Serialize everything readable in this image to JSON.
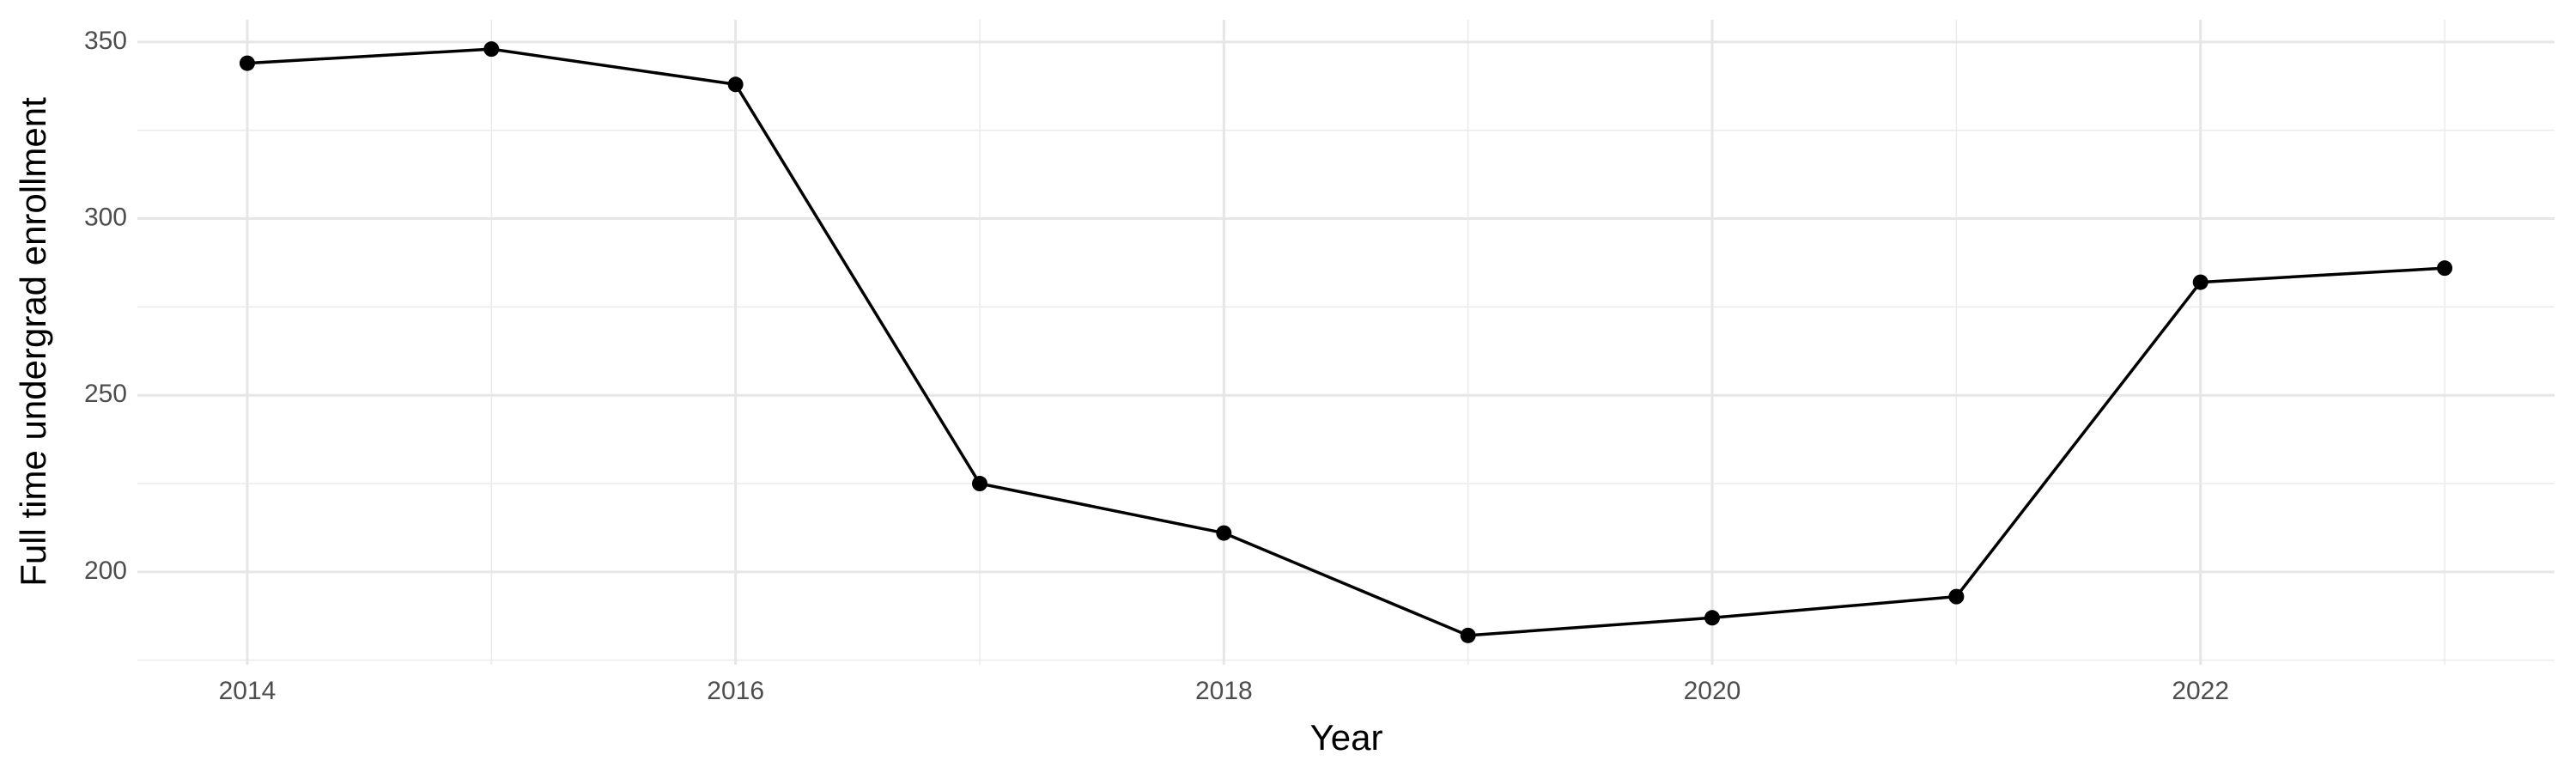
{
  "chart_data": {
    "type": "line",
    "x_label": "Year",
    "y_label": "Full time undergrad enrollment",
    "x": [
      2014,
      2015,
      2016,
      2017,
      2018,
      2019,
      2020,
      2021,
      2022,
      2023
    ],
    "series": [
      {
        "color": "#000000",
        "values": [
          344,
          348,
          338,
          225,
          211,
          182,
          187,
          193,
          282,
          286
        ]
      }
    ],
    "xlim": [
      2013.55,
      2023.45
    ],
    "xticks": [
      2014,
      2016,
      2018,
      2020,
      2022
    ],
    "ylim": [
      173.7,
      356.3
    ],
    "yticks": [
      200,
      250,
      300,
      350
    ],
    "grid": true
  }
}
